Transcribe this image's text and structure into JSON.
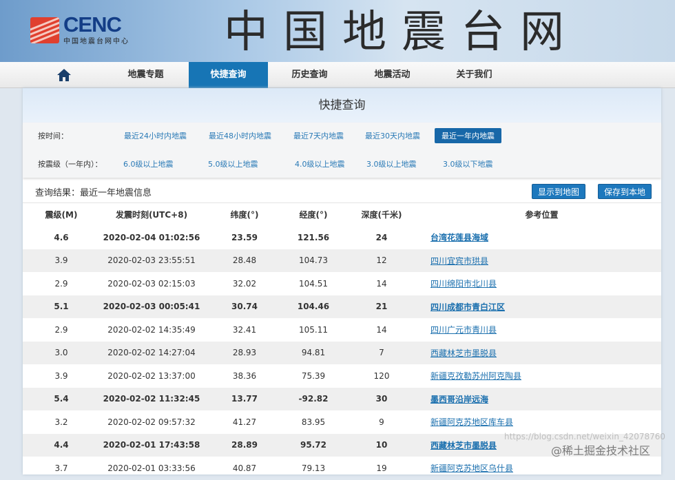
{
  "header": {
    "logo_text": "CENC",
    "logo_subtitle": "中国地震台网中心",
    "site_title": "中国地震台网"
  },
  "nav": {
    "items": [
      {
        "label": "地震专题"
      },
      {
        "label": "快捷查询",
        "active": true
      },
      {
        "label": "历史查询"
      },
      {
        "label": "地震活动"
      },
      {
        "label": "关于我们"
      }
    ],
    "home_icon": "home-icon"
  },
  "page": {
    "title": "快捷查询"
  },
  "filters": {
    "time_label": "按时间：",
    "time_options": [
      "最近24小时内地震",
      "最近48小时内地震",
      "最近7天内地震",
      "最近30天内地震",
      "最近一年内地震"
    ],
    "time_selected": "最近一年内地震",
    "mag_label": "按震级（一年内）：",
    "mag_options": [
      "6.0级以上地震",
      "5.0级以上地震",
      "4.0级以上地震",
      "3.0级以上地震",
      "3.0级以下地震"
    ]
  },
  "results": {
    "title": "查询结果：最近一年地震信息",
    "show_map": "显示到地图",
    "save_local": "保存到本地",
    "columns": [
      "震级(M)",
      "发震时刻(UTC+8)",
      "纬度(°)",
      "经度(°)",
      "深度(千米)",
      "参考位置"
    ],
    "rows": [
      [
        "4.6",
        "2020-02-04 01:02:56",
        "23.59",
        "121.56",
        "24",
        "台湾花莲县海域"
      ],
      [
        "3.9",
        "2020-02-03 23:55:51",
        "28.48",
        "104.73",
        "12",
        "四川宜宾市珙县"
      ],
      [
        "2.9",
        "2020-02-03 02:15:03",
        "32.02",
        "104.51",
        "14",
        "四川绵阳市北川县"
      ],
      [
        "5.1",
        "2020-02-03 00:05:41",
        "30.74",
        "104.46",
        "21",
        "四川成都市青白江区"
      ],
      [
        "2.9",
        "2020-02-02 14:35:49",
        "32.41",
        "105.11",
        "14",
        "四川广元市青川县"
      ],
      [
        "3.0",
        "2020-02-02 14:27:04",
        "28.93",
        "94.81",
        "7",
        "西藏林芝市墨脱县"
      ],
      [
        "3.9",
        "2020-02-02 13:37:00",
        "38.36",
        "75.39",
        "120",
        "新疆克孜勒苏州阿克陶县"
      ],
      [
        "5.4",
        "2020-02-02 11:32:45",
        "13.77",
        "-92.82",
        "30",
        "墨西哥沿岸远海"
      ],
      [
        "3.2",
        "2020-02-02 09:57:32",
        "41.27",
        "83.95",
        "9",
        "新疆阿克苏地区库车县"
      ],
      [
        "4.4",
        "2020-02-01 17:43:58",
        "28.89",
        "95.72",
        "10",
        "西藏林芝市墨脱县"
      ],
      [
        "3.7",
        "2020-02-01 03:33:56",
        "40.87",
        "79.13",
        "19",
        "新疆阿克苏地区乌什县"
      ]
    ]
  },
  "watermark": {
    "juejin": "@稀土掘金技术社区",
    "csdn": "https://blog.csdn.net/weixin_42078760"
  },
  "colors": {
    "accent": "#1775b5",
    "link": "#1a6fae"
  }
}
